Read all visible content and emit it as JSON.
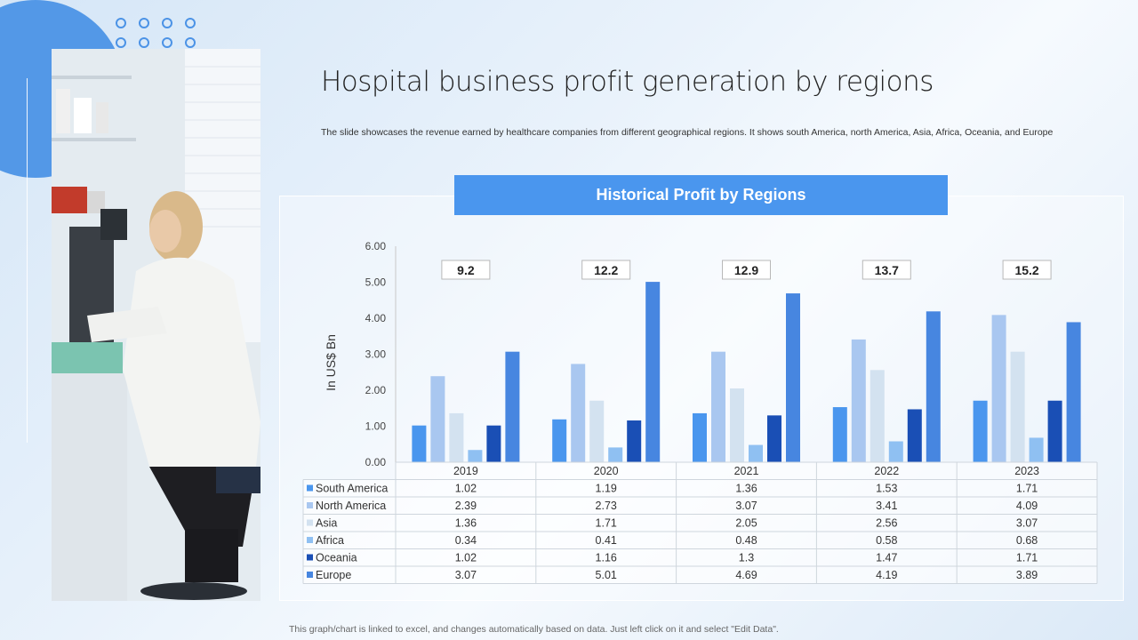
{
  "slide": {
    "title": "Hospital business profit generation by regions",
    "subtitle": "The slide showcases the revenue earned by healthcare companies from different geographical regions. It shows south America, north America, Asia, Africa, Oceania, and Europe",
    "banner": "Historical Profit by Regions",
    "footer": "This graph/chart is linked to excel, and changes automatically based on data. Just left click on it and select \"Edit Data\"."
  },
  "chart_data": {
    "type": "bar",
    "ylabel": "In US$ Bn",
    "ylim": [
      0,
      6
    ],
    "yticks": [
      "0.00",
      "1.00",
      "2.00",
      "3.00",
      "4.00",
      "5.00",
      "6.00"
    ],
    "categories": [
      "2019",
      "2020",
      "2021",
      "2022",
      "2023"
    ],
    "totals": [
      "9.2",
      "12.2",
      "12.9",
      "13.7",
      "15.2"
    ],
    "series": [
      {
        "name": "South America",
        "color": "#4a96ee",
        "values": [
          1.02,
          1.19,
          1.36,
          1.53,
          1.71
        ],
        "labels": [
          "1.02",
          "1.19",
          "1.36",
          "1.53",
          "1.71"
        ]
      },
      {
        "name": "North America",
        "color": "#a9c7f0",
        "values": [
          2.39,
          2.73,
          3.07,
          3.41,
          4.09
        ],
        "labels": [
          "2.39",
          "2.73",
          "3.07",
          "3.41",
          "4.09"
        ]
      },
      {
        "name": "Asia",
        "color": "#d3e2f0",
        "values": [
          1.36,
          1.71,
          2.05,
          2.56,
          3.07
        ],
        "labels": [
          "1.36",
          "1.71",
          "2.05",
          "2.56",
          "3.07"
        ]
      },
      {
        "name": "Africa",
        "color": "#8fc0f2",
        "values": [
          0.34,
          0.41,
          0.48,
          0.58,
          0.68
        ],
        "labels": [
          "0.34",
          "0.41",
          "0.48",
          "0.58",
          "0.68"
        ]
      },
      {
        "name": "Oceania",
        "color": "#1a4fb5",
        "values": [
          1.02,
          1.16,
          1.3,
          1.47,
          1.71
        ],
        "labels": [
          "1.02",
          "1.16",
          "1.3",
          "1.47",
          "1.71"
        ]
      },
      {
        "name": "Europe",
        "color": "#4786e0",
        "values": [
          3.07,
          5.01,
          4.69,
          4.19,
          3.89
        ],
        "labels": [
          "3.07",
          "5.01",
          "4.69",
          "4.19",
          "3.89"
        ]
      }
    ],
    "data_table": true,
    "legend": "in-table"
  }
}
